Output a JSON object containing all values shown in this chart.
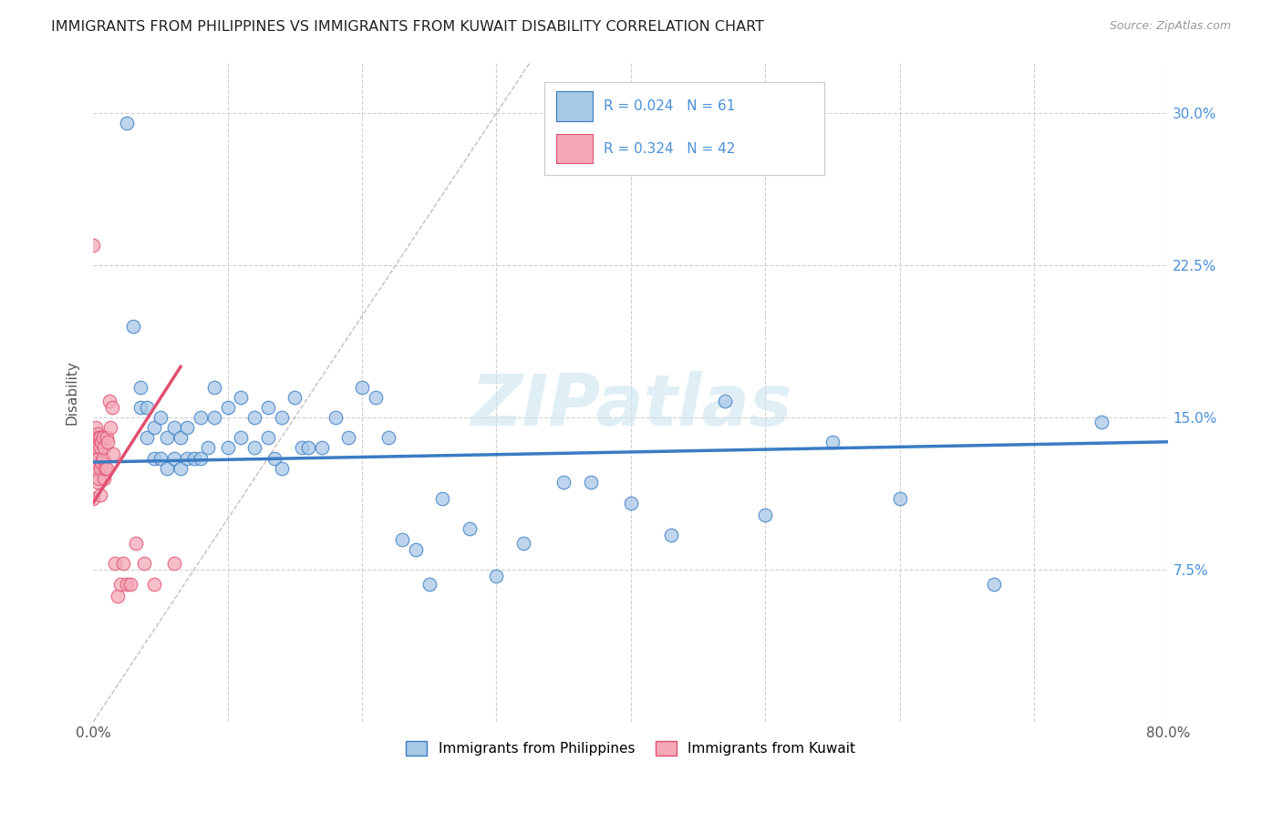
{
  "title": "IMMIGRANTS FROM PHILIPPINES VS IMMIGRANTS FROM KUWAIT DISABILITY CORRELATION CHART",
  "source": "Source: ZipAtlas.com",
  "ylabel": "Disability",
  "legend_label_blue": "Immigrants from Philippines",
  "legend_label_pink": "Immigrants from Kuwait",
  "r_blue": "0.024",
  "n_blue": "61",
  "r_pink": "0.324",
  "n_pink": "42",
  "xlim": [
    0.0,
    0.8
  ],
  "ylim": [
    0.0,
    0.325
  ],
  "xticks": [
    0.0,
    0.1,
    0.2,
    0.3,
    0.4,
    0.5,
    0.6,
    0.7,
    0.8
  ],
  "yticks": [
    0.0,
    0.075,
    0.15,
    0.225,
    0.3
  ],
  "color_blue": "#a8c8e8",
  "color_pink": "#f4a8b8",
  "color_blue_line": "#3a7cc4",
  "color_pink_line": "#e05070",
  "color_blue_text": "#4a90d9",
  "diagonal_color": "#c0c0c0",
  "grid_color": "#d0d0d0",
  "background_color": "#ffffff",
  "watermark": "ZIPatlas",
  "blue_x": [
    0.025,
    0.03,
    0.035,
    0.035,
    0.04,
    0.04,
    0.045,
    0.045,
    0.05,
    0.05,
    0.055,
    0.055,
    0.06,
    0.06,
    0.065,
    0.065,
    0.07,
    0.07,
    0.075,
    0.08,
    0.08,
    0.085,
    0.09,
    0.09,
    0.1,
    0.1,
    0.11,
    0.11,
    0.12,
    0.12,
    0.13,
    0.13,
    0.135,
    0.14,
    0.14,
    0.15,
    0.155,
    0.16,
    0.17,
    0.18,
    0.19,
    0.2,
    0.21,
    0.22,
    0.23,
    0.24,
    0.25,
    0.26,
    0.28,
    0.3,
    0.32,
    0.35,
    0.37,
    0.4,
    0.43,
    0.47,
    0.5,
    0.55,
    0.6,
    0.67,
    0.75
  ],
  "blue_y": [
    0.295,
    0.195,
    0.165,
    0.155,
    0.155,
    0.14,
    0.145,
    0.13,
    0.15,
    0.13,
    0.14,
    0.125,
    0.145,
    0.13,
    0.14,
    0.125,
    0.145,
    0.13,
    0.13,
    0.15,
    0.13,
    0.135,
    0.165,
    0.15,
    0.155,
    0.135,
    0.16,
    0.14,
    0.15,
    0.135,
    0.155,
    0.14,
    0.13,
    0.15,
    0.125,
    0.16,
    0.135,
    0.135,
    0.135,
    0.15,
    0.14,
    0.165,
    0.16,
    0.14,
    0.09,
    0.085,
    0.068,
    0.11,
    0.095,
    0.072,
    0.088,
    0.118,
    0.118,
    0.108,
    0.092,
    0.158,
    0.102,
    0.138,
    0.11,
    0.068,
    0.148
  ],
  "pink_x": [
    0.0,
    0.0,
    0.0,
    0.0,
    0.0,
    0.002,
    0.002,
    0.003,
    0.003,
    0.003,
    0.003,
    0.004,
    0.004,
    0.004,
    0.005,
    0.005,
    0.005,
    0.005,
    0.006,
    0.006,
    0.007,
    0.007,
    0.008,
    0.008,
    0.009,
    0.01,
    0.01,
    0.011,
    0.012,
    0.013,
    0.014,
    0.015,
    0.016,
    0.018,
    0.02,
    0.022,
    0.025,
    0.028,
    0.032,
    0.038,
    0.045,
    0.06
  ],
  "pink_y": [
    0.235,
    0.14,
    0.135,
    0.125,
    0.11,
    0.145,
    0.138,
    0.142,
    0.135,
    0.128,
    0.118,
    0.14,
    0.13,
    0.12,
    0.14,
    0.135,
    0.125,
    0.112,
    0.138,
    0.128,
    0.14,
    0.13,
    0.135,
    0.12,
    0.125,
    0.14,
    0.125,
    0.138,
    0.158,
    0.145,
    0.155,
    0.132,
    0.078,
    0.062,
    0.068,
    0.078,
    0.068,
    0.068,
    0.088,
    0.078,
    0.068,
    0.078
  ],
  "blue_trend_x": [
    0.0,
    0.8
  ],
  "blue_trend_y": [
    0.128,
    0.138
  ],
  "pink_trend_x": [
    0.0,
    0.065
  ],
  "pink_trend_y": [
    0.108,
    0.175
  ]
}
